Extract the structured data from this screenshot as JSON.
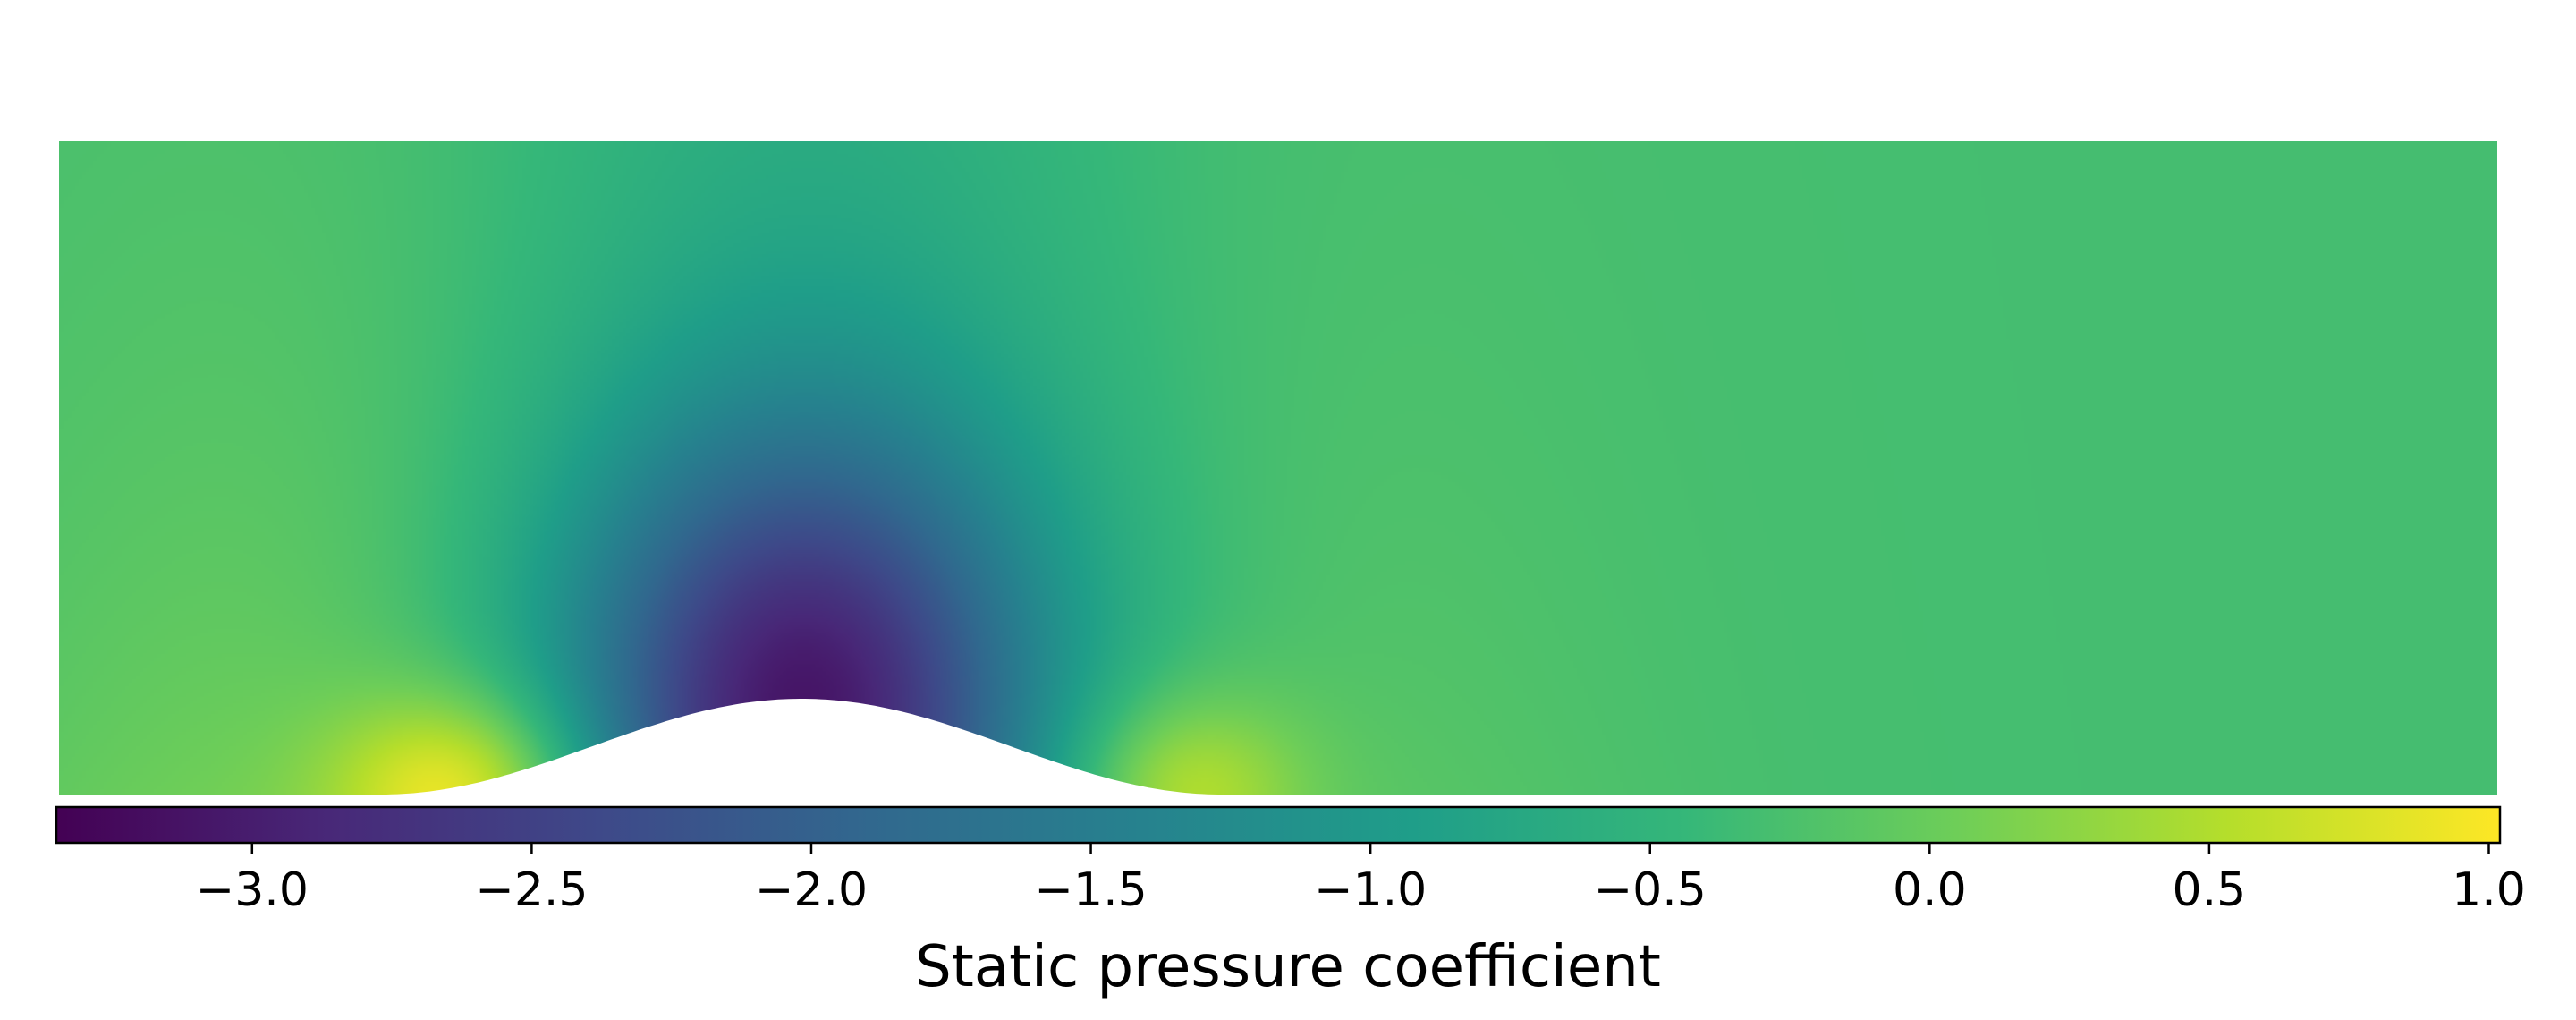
{
  "chart_data": {
    "type": "heatmap",
    "title": "",
    "colormap": "viridis",
    "colorbar": {
      "label": "Static pressure coefficient",
      "orientation": "horizontal",
      "placement": "bottom",
      "range": [
        -3.35,
        1.02
      ],
      "ticks": [
        -3.0,
        -2.5,
        -2.0,
        -1.5,
        -1.0,
        -0.5,
        0.0,
        0.5,
        1.0
      ],
      "tick_labels": [
        "−3.0",
        "−2.5",
        "−2.0",
        "−1.5",
        "−1.0",
        "−0.5",
        "0.0",
        "0.5",
        "1.0"
      ]
    },
    "field": {
      "description_units": "static pressure coefficient",
      "far_field_value": -0.3,
      "minimum": {
        "value": -3.3,
        "location": "crest of bump"
      },
      "upstream_stagnation_max": {
        "value": 0.95,
        "location": "upstream foot of bump"
      },
      "downstream_stagnation_max": {
        "value": 0.6,
        "location": "downstream foot of bump"
      }
    },
    "axes_visible": false,
    "grid": false
  },
  "colors": {
    "viridis_stops": [
      "#440154",
      "#482878",
      "#3e4989",
      "#31688e",
      "#26828e",
      "#1f9e89",
      "#35b779",
      "#6ece58",
      "#b5de2b",
      "#fde725"
    ],
    "background": "#ffffff",
    "obstacle": "#ffffff",
    "frame": "#000000"
  }
}
